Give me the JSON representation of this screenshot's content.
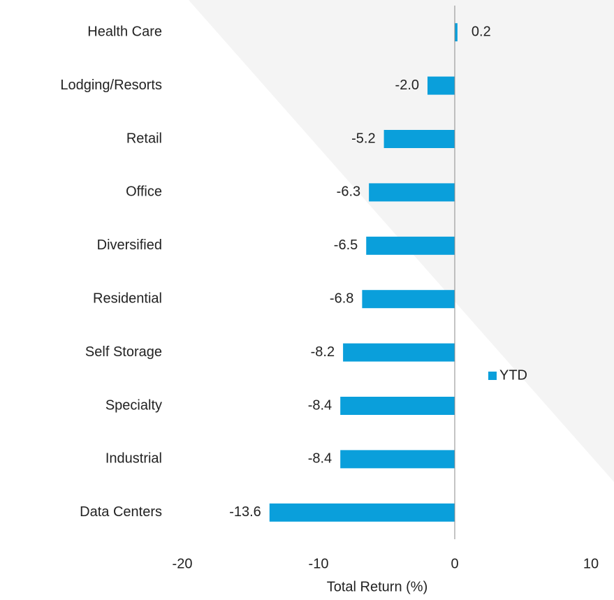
{
  "chart_data": {
    "type": "bar",
    "orientation": "horizontal",
    "categories": [
      "Health Care",
      "Lodging/Resorts",
      "Retail",
      "Office",
      "Diversified",
      "Residential",
      "Self Storage",
      "Specialty",
      "Industrial",
      "Data Centers"
    ],
    "series": [
      {
        "name": "YTD",
        "color": "#0a9fdb",
        "values": [
          0.2,
          -2.0,
          -5.2,
          -6.3,
          -6.5,
          -6.8,
          -8.2,
          -8.4,
          -8.4,
          -13.6
        ],
        "value_labels": [
          "0.2",
          "-2.0",
          "-5.2",
          "-6.3",
          "-6.5",
          "-6.8",
          "-8.2",
          "-8.4",
          "-8.4",
          "-13.6"
        ]
      }
    ],
    "xlim": [
      -20,
      10
    ],
    "xticks": [
      -20,
      -10,
      0,
      10
    ],
    "xlabel": "Total Return (%)",
    "legend": "right"
  }
}
